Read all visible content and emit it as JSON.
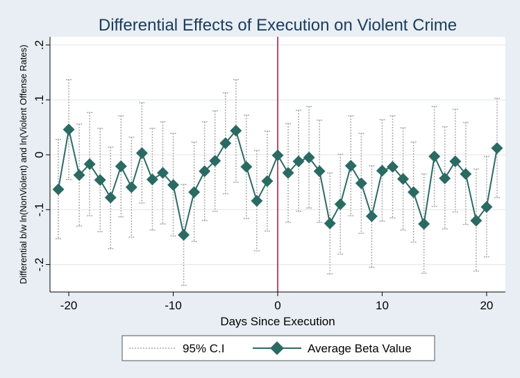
{
  "chart_data": {
    "type": "line",
    "title": "Differential Effects of Execution on Violent Crime",
    "xlabel": "Days Since Execution",
    "ylabel": "Differential b/w ln(NonViolent) and ln(Violent Offense Rates)",
    "xlim": [
      -21.8,
      21.8
    ],
    "ylim": [
      -0.25,
      0.215
    ],
    "x_ticks": [
      {
        "value": -20,
        "label": "-20"
      },
      {
        "value": -10,
        "label": "-10"
      },
      {
        "value": 0,
        "label": "0"
      },
      {
        "value": 10,
        "label": "10"
      },
      {
        "value": 20,
        "label": "20"
      }
    ],
    "y_ticks": [
      {
        "value": 0.2,
        "label": ".2"
      },
      {
        "value": 0.1,
        "label": ".1"
      },
      {
        "value": 0,
        "label": "0"
      },
      {
        "value": -0.1,
        "label": "-.1"
      },
      {
        "value": -0.2,
        "label": "-.2"
      }
    ],
    "reference_line_x": 0,
    "grid": "horizontal",
    "legend_position": "bottom",
    "colors": {
      "plot_bg": "#ffffff",
      "outer_bg": "#e8eef3",
      "series": "#2b6a63",
      "ci": "#a8a8a8",
      "grid": "#dfe4e8",
      "refline": "#a0103a",
      "title": "#1a3b5d"
    },
    "legend": [
      "95% C.I",
      "Average Beta Value"
    ],
    "x": [
      -21,
      -20,
      -19,
      -18,
      -17,
      -16,
      -15,
      -14,
      -13,
      -12,
      -11,
      -10,
      -9,
      -8,
      -7,
      -6,
      -5,
      -4,
      -3,
      -2,
      -1,
      0,
      1,
      2,
      3,
      4,
      5,
      6,
      7,
      8,
      9,
      10,
      11,
      12,
      13,
      14,
      15,
      16,
      17,
      18,
      19,
      20,
      21
    ],
    "series": [
      {
        "name": "Average Beta Value",
        "values": [
          -0.063,
          0.046,
          -0.037,
          -0.017,
          -0.046,
          -0.078,
          -0.021,
          -0.059,
          0.003,
          -0.045,
          -0.033,
          -0.055,
          -0.146,
          -0.068,
          -0.03,
          -0.011,
          0.021,
          0.044,
          -0.022,
          -0.084,
          -0.048,
          -0.001,
          -0.033,
          -0.012,
          -0.005,
          -0.03,
          -0.125,
          -0.09,
          -0.02,
          -0.052,
          -0.112,
          -0.029,
          -0.022,
          -0.044,
          -0.068,
          -0.126,
          -0.003,
          -0.043,
          -0.012,
          -0.035,
          -0.12,
          -0.095,
          0.012
        ]
      },
      {
        "name": "95% C.I",
        "lower": [
          -0.153,
          -0.045,
          -0.13,
          -0.111,
          -0.14,
          -0.171,
          -0.113,
          -0.15,
          -0.088,
          -0.137,
          -0.126,
          -0.148,
          -0.238,
          -0.158,
          -0.12,
          -0.103,
          -0.071,
          -0.05,
          -0.116,
          -0.175,
          -0.139,
          -0.001,
          -0.123,
          -0.103,
          -0.097,
          -0.123,
          -0.217,
          -0.181,
          -0.111,
          -0.143,
          -0.205,
          -0.121,
          -0.115,
          -0.137,
          -0.159,
          -0.216,
          -0.094,
          -0.135,
          -0.104,
          -0.127,
          -0.212,
          -0.186,
          -0.078
        ],
        "upper": [
          0.028,
          0.137,
          0.056,
          0.077,
          0.048,
          0.014,
          0.071,
          0.032,
          0.095,
          0.048,
          0.06,
          0.039,
          -0.054,
          0.023,
          0.06,
          0.08,
          0.113,
          0.137,
          0.072,
          0.008,
          0.043,
          -0.001,
          0.057,
          0.081,
          0.088,
          0.063,
          -0.033,
          0.001,
          0.071,
          0.039,
          -0.02,
          0.064,
          0.071,
          0.049,
          0.023,
          -0.035,
          0.088,
          0.051,
          0.083,
          0.059,
          -0.026,
          -0.003,
          0.103
        ]
      }
    ]
  }
}
